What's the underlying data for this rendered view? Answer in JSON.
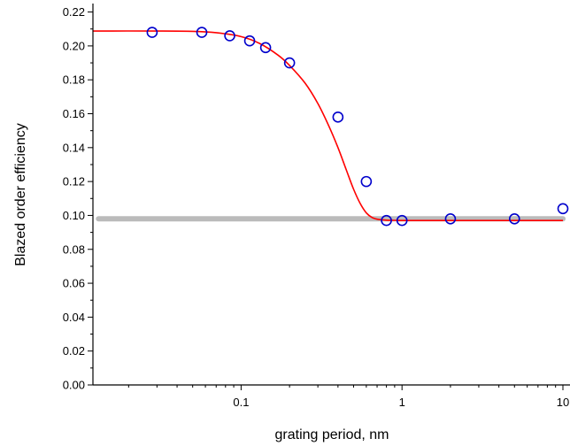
{
  "chart_data": {
    "type": "scatter",
    "title": "",
    "xlabel": "grating period, nm",
    "ylabel": "Blazed order efficiency",
    "xscale": "log",
    "xlim": [
      0.012,
      10
    ],
    "ylim": [
      0.0,
      0.225
    ],
    "x_tick_labels": [
      "0.1",
      "1",
      "10"
    ],
    "x_ticks": [
      0.1,
      1,
      10
    ],
    "y_tick_labels": [
      "0.00",
      "0.02",
      "0.04",
      "0.06",
      "0.08",
      "0.10",
      "0.12",
      "0.14",
      "0.16",
      "0.18",
      "0.20",
      "0.22"
    ],
    "y_ticks": [
      0.0,
      0.02,
      0.04,
      0.06,
      0.08,
      0.1,
      0.12,
      0.14,
      0.16,
      0.18,
      0.2,
      0.22
    ],
    "grid": false,
    "colors": {
      "markers": "#0000cc",
      "fit": "#ff0000",
      "baseline": "#bbbbbb",
      "axes": "#000000"
    },
    "series": [
      {
        "style": "circle-markers",
        "x": [
          0.028,
          0.057,
          0.085,
          0.113,
          0.142,
          0.2,
          0.4,
          0.6,
          0.8,
          1.0,
          2.0,
          5.0,
          10.0
        ],
        "y": [
          0.208,
          0.208,
          0.206,
          0.203,
          0.199,
          0.19,
          0.158,
          0.12,
          0.097,
          0.097,
          0.098,
          0.098,
          0.104
        ]
      },
      {
        "style": "fit-line",
        "x": [
          0.012,
          0.03,
          0.05,
          0.07,
          0.1,
          0.13,
          0.17,
          0.2,
          0.25,
          0.3,
          0.35,
          0.4,
          0.45,
          0.5,
          0.55,
          0.6,
          0.65,
          0.7,
          0.8,
          0.9,
          1.0,
          1.2,
          2.0,
          5.0,
          10.0
        ],
        "y": [
          0.2088,
          0.2088,
          0.2086,
          0.2078,
          0.2055,
          0.2015,
          0.1945,
          0.1885,
          0.178,
          0.166,
          0.153,
          0.14,
          0.127,
          0.1155,
          0.107,
          0.1015,
          0.0988,
          0.0978,
          0.0972,
          0.0971,
          0.097,
          0.097,
          0.097,
          0.097,
          0.097
        ]
      },
      {
        "style": "baseline",
        "x": [
          0.013,
          10.0
        ],
        "y": [
          0.098,
          0.098
        ]
      }
    ]
  }
}
